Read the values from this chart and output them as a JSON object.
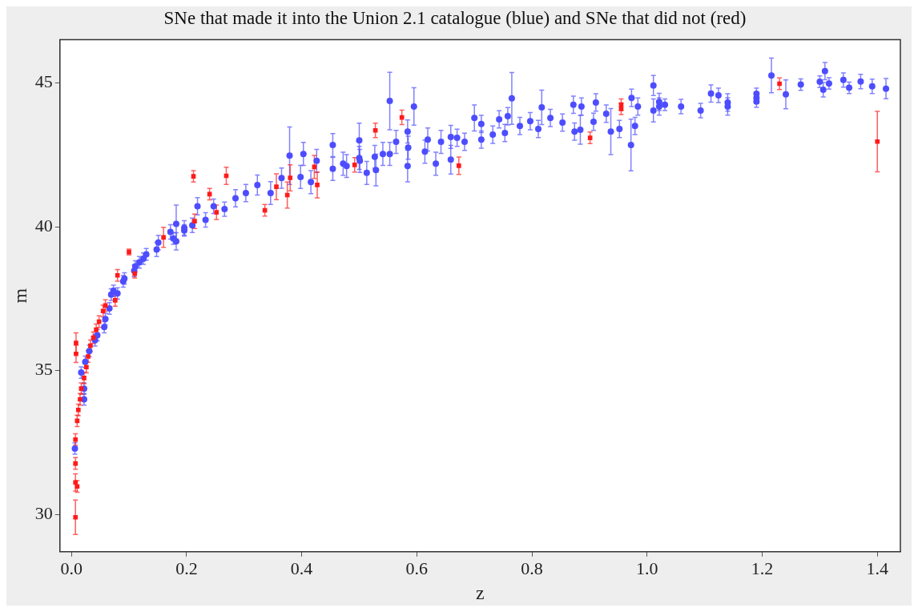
{
  "chart_data": {
    "type": "scatter",
    "title": "SNe that made it into the Union 2.1 catalogue (blue) and SNe that did not (red)",
    "xlabel": "z",
    "ylabel": "m",
    "xlim": [
      -0.02,
      1.44
    ],
    "ylim": [
      28.7,
      46.5
    ],
    "xticks": [
      {
        "value": 0,
        "label": "0.0"
      },
      0.2,
      0.4,
      0.6,
      0.8,
      {
        "value": 1,
        "label": "1.0"
      },
      1.2,
      1.4
    ],
    "yticks": [
      30,
      35,
      40,
      45
    ],
    "series": [
      {
        "color": "#4d4dff",
        "marker": "circle",
        "x": [
          0.006,
          0.017,
          0.022,
          0.022,
          0.024,
          0.031,
          0.041,
          0.045,
          0.057,
          0.059,
          0.066,
          0.069,
          0.073,
          0.08,
          0.09,
          0.092,
          0.109,
          0.111,
          0.118,
          0.125,
          0.13,
          0.148,
          0.151,
          0.172,
          0.177,
          0.182,
          0.182,
          0.196,
          0.196,
          0.21,
          0.219,
          0.233,
          0.247,
          0.266,
          0.285,
          0.303,
          0.323,
          0.346,
          0.365,
          0.379,
          0.398,
          0.403,
          0.416,
          0.426,
          0.454,
          0.454,
          0.472,
          0.478,
          0.5,
          0.5,
          0.501,
          0.513,
          0.527,
          0.529,
          0.541,
          0.553,
          0.553,
          0.564,
          0.584,
          0.584,
          0.585,
          0.595,
          0.614,
          0.619,
          0.633,
          0.642,
          0.659,
          0.659,
          0.67,
          0.683,
          0.7,
          0.712,
          0.712,
          0.732,
          0.743,
          0.753,
          0.758,
          0.765,
          0.779,
          0.797,
          0.811,
          0.817,
          0.832,
          0.853,
          0.872,
          0.874,
          0.884,
          0.886,
          0.907,
          0.911,
          0.929,
          0.937,
          0.952,
          0.972,
          0.973,
          0.979,
          0.984,
          1.011,
          1.011,
          1.021,
          1.021,
          1.031,
          1.059,
          1.093,
          1.111,
          1.124,
          1.14,
          1.14,
          1.19,
          1.19,
          1.19,
          1.216,
          1.241,
          1.267,
          1.3,
          1.309,
          1.306,
          1.316,
          1.341,
          1.351,
          1.371,
          1.391,
          1.415
        ],
        "values": [
          32.29,
          34.93,
          34.0,
          34.37,
          35.3,
          35.68,
          36.05,
          36.23,
          36.51,
          36.79,
          37.16,
          37.64,
          37.77,
          37.68,
          38.1,
          38.2,
          38.47,
          38.62,
          38.76,
          38.89,
          39.04,
          39.21,
          39.45,
          39.82,
          39.59,
          39.49,
          40.1,
          39.96,
          39.87,
          40.05,
          40.71,
          40.24,
          40.71,
          40.61,
          40.99,
          41.17,
          41.45,
          41.17,
          41.69,
          42.47,
          41.73,
          42.53,
          41.55,
          42.29,
          42.84,
          42.01,
          42.19,
          42.11,
          43.0,
          42.39,
          42.29,
          41.87,
          42.43,
          41.97,
          42.53,
          44.37,
          42.53,
          42.95,
          42.11,
          43.31,
          42.75,
          44.18,
          42.61,
          43.03,
          42.19,
          42.95,
          43.12,
          42.33,
          43.09,
          42.95,
          43.78,
          43.57,
          43.03,
          43.2,
          43.73,
          43.26,
          43.84,
          44.46,
          43.5,
          43.67,
          43.4,
          44.15,
          43.78,
          43.62,
          44.24,
          43.31,
          43.37,
          44.18,
          43.65,
          44.32,
          43.93,
          43.31,
          43.4,
          42.84,
          44.48,
          43.5,
          44.18,
          44.91,
          44.04,
          44.34,
          44.18,
          44.24,
          44.18,
          44.04,
          44.63,
          44.57,
          44.32,
          44.18,
          44.62,
          44.48,
          44.35,
          45.26,
          44.6,
          44.94,
          45.04,
          45.41,
          44.76,
          44.98,
          45.1,
          44.83,
          45.05,
          44.88,
          44.8
        ],
        "errors": [
          0.2,
          0.2,
          0.2,
          0.2,
          0.2,
          0.2,
          0.2,
          0.2,
          0.2,
          0.2,
          0.2,
          0.2,
          0.2,
          0.2,
          0.2,
          0.2,
          0.2,
          0.2,
          0.2,
          0.2,
          0.2,
          0.25,
          0.25,
          0.25,
          0.2,
          0.3,
          0.65,
          0.25,
          0.2,
          0.25,
          0.3,
          0.25,
          0.25,
          0.25,
          0.3,
          0.3,
          0.35,
          0.4,
          0.35,
          1.0,
          0.4,
          0.4,
          0.4,
          0.4,
          0.4,
          0.4,
          0.4,
          0.4,
          0.6,
          0.4,
          0.4,
          0.4,
          0.4,
          0.55,
          0.4,
          1.0,
          0.4,
          0.4,
          0.55,
          0.4,
          0.4,
          0.65,
          0.4,
          0.4,
          0.4,
          0.4,
          0.4,
          0.5,
          0.3,
          0.3,
          0.45,
          0.3,
          0.3,
          0.3,
          0.3,
          0.3,
          0.3,
          0.9,
          0.3,
          0.3,
          0.3,
          0.6,
          0.3,
          0.3,
          0.3,
          0.3,
          0.5,
          0.3,
          0.3,
          0.3,
          0.3,
          0.8,
          0.3,
          0.9,
          0.3,
          0.3,
          0.3,
          0.35,
          0.4,
          0.3,
          0.3,
          0.2,
          0.25,
          0.25,
          0.3,
          0.25,
          0.3,
          0.3,
          0.2,
          0.2,
          0.2,
          0.6,
          0.5,
          0.2,
          0.2,
          0.3,
          0.25,
          0.2,
          0.25,
          0.2,
          0.25,
          0.25,
          0.35
        ]
      },
      {
        "color": "#ff1a1a",
        "marker": "square",
        "x": [
          0.007,
          0.007,
          0.01,
          0.007,
          0.007,
          0.008,
          0.008,
          0.01,
          0.012,
          0.015,
          0.017,
          0.022,
          0.026,
          0.029,
          0.033,
          0.038,
          0.043,
          0.048,
          0.055,
          0.059,
          0.076,
          0.08,
          0.1,
          0.11,
          0.16,
          0.212,
          0.214,
          0.24,
          0.252,
          0.269,
          0.336,
          0.356,
          0.375,
          0.38,
          0.422,
          0.427,
          0.492,
          0.528,
          0.574,
          0.673,
          0.901,
          0.955,
          0.955,
          1.23,
          1.4
        ],
        "values": [
          29.9,
          31.11,
          30.97,
          31.77,
          32.6,
          35.96,
          35.58,
          33.25,
          33.63,
          34.0,
          34.37,
          34.74,
          35.12,
          35.49,
          35.86,
          36.14,
          36.42,
          36.7,
          37.07,
          37.26,
          37.44,
          38.31,
          39.12,
          38.37,
          39.63,
          41.75,
          40.19,
          41.13,
          40.5,
          41.77,
          40.57,
          41.39,
          41.1,
          41.7,
          42.08,
          41.45,
          42.15,
          43.35,
          43.8,
          42.12,
          43.09,
          44.24,
          44.1,
          44.97,
          42.96
        ],
        "errors": [
          0.6,
          0.3,
          0.2,
          0.2,
          0.2,
          0.35,
          0.3,
          0.2,
          0.2,
          0.2,
          0.2,
          0.2,
          0.2,
          0.2,
          0.2,
          0.2,
          0.2,
          0.2,
          0.2,
          0.2,
          0.2,
          0.2,
          0.1,
          0.15,
          0.35,
          0.2,
          0.25,
          0.2,
          0.25,
          0.3,
          0.2,
          0.45,
          0.45,
          0.45,
          0.4,
          0.45,
          0.25,
          0.25,
          0.25,
          0.3,
          0.2,
          0.2,
          0.2,
          0.2,
          1.05
        ]
      }
    ]
  }
}
